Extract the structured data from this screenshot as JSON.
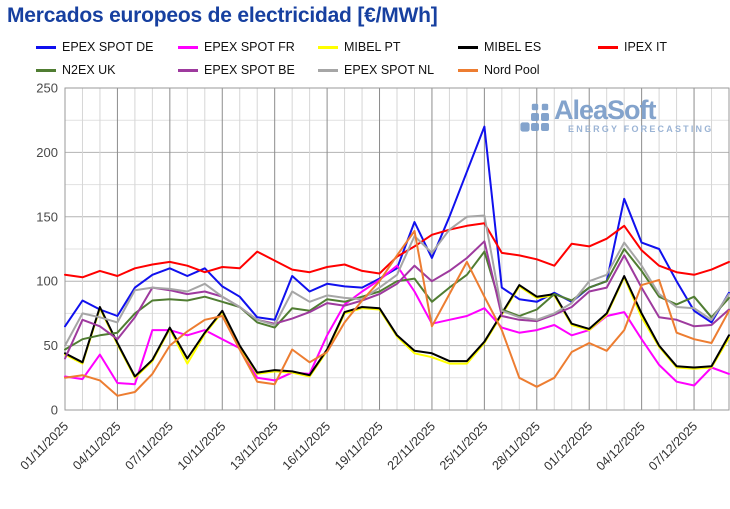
{
  "page": {
    "title": "Mercados europeos de electricidad [€/MWh]"
  },
  "watermark": {
    "name": "AleaSoft",
    "tagline": "ENERGY FORECASTING",
    "name_color": "#7d9fca",
    "tagline_color": "#96b0d3"
  },
  "chart_data": {
    "type": "line",
    "title": "Mercados europeos de electricidad [€/MWh]",
    "title_color": "#1740a0",
    "xlabel": "",
    "ylabel": "",
    "ylim": [
      0,
      250
    ],
    "y_ticks": [
      0,
      50,
      100,
      150,
      200,
      250
    ],
    "y_minor_step": 25,
    "grid": true,
    "legend_position": "top",
    "x_start_date": "01/11/2025",
    "x_days_total": 38,
    "x_tick_day_indices": [
      0,
      3,
      6,
      9,
      12,
      15,
      18,
      21,
      24,
      27,
      30,
      33,
      36
    ],
    "x_tick_labels": [
      "01/11/2025",
      "04/11/2025",
      "07/11/2025",
      "10/11/2025",
      "13/11/2025",
      "16/11/2025",
      "19/11/2025",
      "22/11/2025",
      "25/11/2025",
      "28/11/2025",
      "01/12/2025",
      "04/12/2025",
      "07/12/2025"
    ],
    "series": [
      {
        "name": "EPEX SPOT DE",
        "color": "#1010ee",
        "values": [
          65,
          85,
          78,
          73,
          95,
          105,
          110,
          104,
          110,
          96,
          88,
          72,
          70,
          104,
          92,
          98,
          96,
          95,
          102,
          110,
          146,
          118,
          150,
          185,
          220,
          95,
          86,
          84,
          91,
          84,
          95,
          100,
          164,
          130,
          125,
          100,
          77,
          68,
          91
        ]
      },
      {
        "name": "EPEX SPOT FR",
        "color": "#ff00ff",
        "values": [
          26,
          24,
          43,
          21,
          20,
          62,
          62,
          58,
          62,
          55,
          48,
          25,
          23,
          29,
          28,
          58,
          82,
          92,
          101,
          112,
          92,
          67,
          70,
          73,
          79,
          64,
          60,
          62,
          66,
          58,
          62,
          73,
          76,
          55,
          35,
          22,
          19,
          33,
          28
        ]
      },
      {
        "name": "MIBEL PT",
        "color": "#ffff00",
        "values": [
          43,
          36,
          79,
          51,
          25,
          38,
          63,
          36,
          59,
          76,
          49,
          28,
          30,
          29,
          26,
          46,
          75,
          79,
          78,
          57,
          44,
          41,
          36,
          36,
          52,
          74,
          96,
          87,
          89,
          66,
          62,
          74,
          103,
          72,
          49,
          33,
          32,
          33,
          56
        ]
      },
      {
        "name": "MIBEL ES",
        "color": "#000000",
        "values": [
          44,
          37,
          80,
          52,
          26,
          39,
          64,
          40,
          60,
          77,
          50,
          29,
          31,
          30,
          27,
          47,
          76,
          80,
          79,
          58,
          46,
          44,
          38,
          38,
          53,
          75,
          97,
          88,
          90,
          67,
          63,
          75,
          104,
          75,
          50,
          34,
          33,
          34,
          58
        ]
      },
      {
        "name": "IPEX IT",
        "color": "#ff0000",
        "values": [
          105,
          103,
          108,
          104,
          110,
          113,
          115,
          112,
          107,
          111,
          110,
          123,
          116,
          109,
          107,
          111,
          113,
          108,
          106,
          119,
          127,
          136,
          140,
          143,
          145,
          122,
          120,
          117,
          112,
          129,
          127,
          133,
          143,
          124,
          112,
          107,
          105,
          109,
          115
        ]
      },
      {
        "name": "N2EX UK",
        "color": "#507d32",
        "values": [
          47,
          55,
          58,
          60,
          75,
          85,
          86,
          85,
          88,
          84,
          80,
          68,
          64,
          79,
          77,
          86,
          84,
          88,
          92,
          100,
          102,
          84,
          95,
          105,
          123,
          78,
          73,
          78,
          90,
          85,
          95,
          100,
          125,
          108,
          88,
          82,
          88,
          72,
          87
        ]
      },
      {
        "name": "EPEX SPOT BE",
        "color": "#9e3a9e",
        "values": [
          40,
          70,
          65,
          55,
          72,
          95,
          93,
          90,
          92,
          88,
          80,
          70,
          67,
          71,
          76,
          83,
          81,
          85,
          90,
          98,
          112,
          100,
          108,
          118,
          131,
          73,
          70,
          69,
          74,
          80,
          92,
          95,
          120,
          95,
          72,
          70,
          65,
          66,
          78
        ]
      },
      {
        "name": "EPEX SPOT NL",
        "color": "#a6a6a6",
        "values": [
          50,
          75,
          72,
          68,
          93,
          95,
          94,
          92,
          98,
          88,
          80,
          70,
          66,
          92,
          84,
          89,
          87,
          86,
          95,
          105,
          135,
          122,
          140,
          150,
          151,
          77,
          72,
          70,
          75,
          83,
          100,
          105,
          130,
          112,
          90,
          80,
          79,
          70,
          90
        ]
      },
      {
        "name": "Nord Pool",
        "color": "#ed7d31",
        "values": [
          25,
          27,
          23,
          11,
          14,
          28,
          50,
          61,
          70,
          73,
          47,
          22,
          20,
          47,
          37,
          45,
          68,
          85,
          100,
          120,
          139,
          65,
          90,
          115,
          88,
          62,
          25,
          18,
          25,
          45,
          52,
          46,
          62,
          97,
          101,
          60,
          55,
          52,
          77
        ]
      }
    ]
  }
}
